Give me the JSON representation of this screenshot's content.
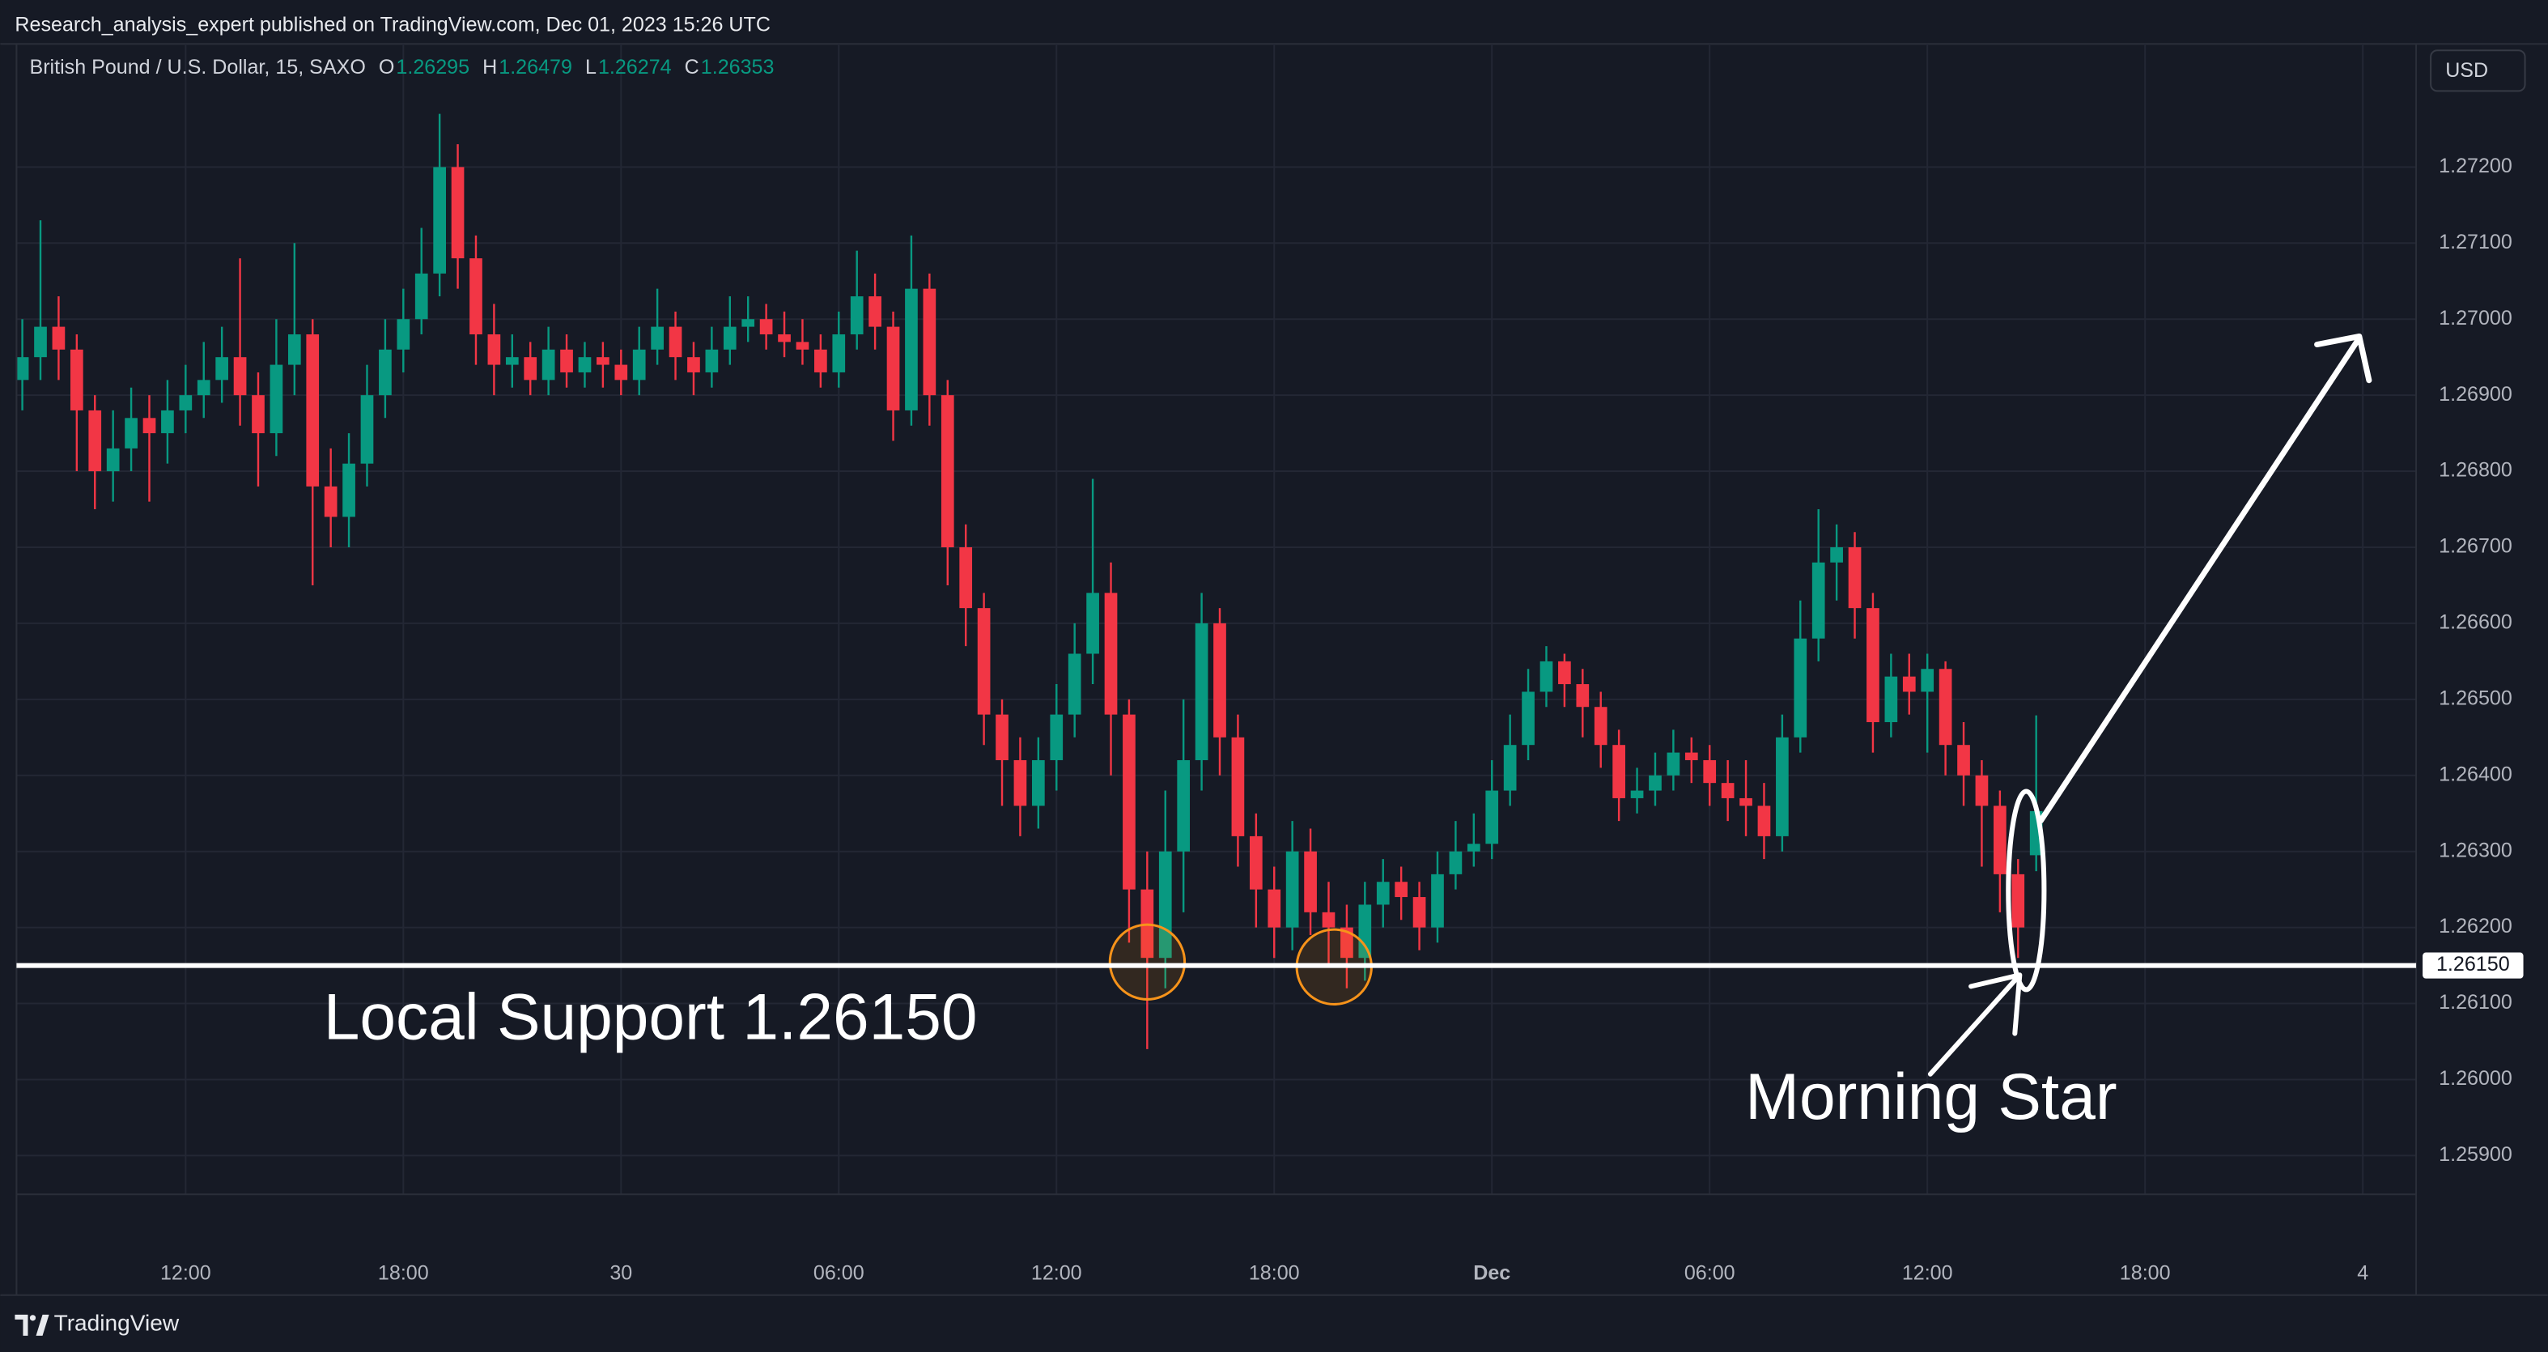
{
  "header": {
    "text": "Research_analysis_expert published on TradingView.com, Dec 01, 2023 15:26 UTC"
  },
  "footer": {
    "brand": "TradingView"
  },
  "chart_data": {
    "type": "candlestick",
    "symbol": "British Pound / U.S. Dollar, 15, SAXO",
    "ohlc_labels": [
      "O",
      "H",
      "L",
      "C"
    ],
    "currency": "USD",
    "x": [
      7.5,
      8,
      8.5,
      9,
      9.5,
      10,
      10.5,
      11,
      11.5,
      12,
      12.5,
      13,
      13.5,
      14,
      14.5,
      15,
      15.5,
      16,
      16.5,
      17,
      17.5,
      18,
      18.5,
      19,
      19.5,
      20,
      20.5,
      21,
      21.5,
      22,
      22.5,
      23,
      23.5,
      24,
      24.5,
      25,
      25.5,
      26,
      26.5,
      27,
      27.5,
      28,
      28.5,
      29,
      29.5,
      30,
      30.5,
      31,
      31.5,
      32,
      32.5,
      33,
      33.5,
      34,
      34.5,
      35,
      35.5,
      36,
      36.5,
      37,
      37.5,
      38,
      38.5,
      39,
      39.5,
      40,
      40.5,
      41,
      41.5,
      42,
      42.5,
      43,
      43.5,
      44,
      44.5,
      45,
      45.5,
      46,
      46.5,
      47,
      47.5,
      48,
      48.5,
      49,
      49.5,
      50,
      50.5,
      51,
      51.5,
      52,
      52.5,
      53,
      53.5,
      54,
      54.5,
      55,
      55.5,
      56,
      56.5,
      57,
      57.5,
      58,
      58.5,
      59,
      59.5,
      60,
      60.5,
      61,
      61.5,
      62,
      62.5,
      63
    ],
    "open": [
      1.2692,
      1.2695,
      1.2699,
      1.2696,
      1.2688,
      1.268,
      1.2683,
      1.2687,
      1.2685,
      1.2688,
      1.269,
      1.2692,
      1.2695,
      1.269,
      1.2685,
      1.2694,
      1.2698,
      1.2678,
      1.2674,
      1.2681,
      1.269,
      1.2696,
      1.27,
      1.2706,
      1.272,
      1.2708,
      1.2698,
      1.2694,
      1.2695,
      1.2692,
      1.2696,
      1.2693,
      1.2695,
      1.2694,
      1.2692,
      1.2696,
      1.2699,
      1.2695,
      1.2693,
      1.2696,
      1.2699,
      1.27,
      1.2698,
      1.2697,
      1.2696,
      1.2693,
      1.2698,
      1.2703,
      1.2699,
      1.2688,
      1.2704,
      1.269,
      1.267,
      1.2662,
      1.2648,
      1.2642,
      1.2636,
      1.2642,
      1.2648,
      1.2656,
      1.2664,
      1.2648,
      1.2625,
      1.2616,
      1.263,
      1.2642,
      1.266,
      1.2645,
      1.2632,
      1.2625,
      1.262,
      1.263,
      1.2622,
      1.262,
      1.2616,
      1.2623,
      1.2626,
      1.2624,
      1.262,
      1.2627,
      1.263,
      1.2631,
      1.2638,
      1.2644,
      1.2651,
      1.2655,
      1.2652,
      1.2649,
      1.2644,
      1.2637,
      1.2638,
      1.264,
      1.2643,
      1.2642,
      1.2639,
      1.2637,
      1.2636,
      1.2632,
      1.2645,
      1.2658,
      1.2668,
      1.267,
      1.2662,
      1.2647,
      1.2653,
      1.2651,
      1.2654,
      1.2644,
      1.264,
      1.2636,
      1.2627,
      1.26295
    ],
    "high": [
      1.27,
      1.2713,
      1.2703,
      1.2698,
      1.269,
      1.2688,
      1.2691,
      1.269,
      1.2692,
      1.2694,
      1.2697,
      1.2699,
      1.2708,
      1.2693,
      1.27,
      1.271,
      1.27,
      1.2683,
      1.2685,
      1.2694,
      1.27,
      1.2704,
      1.2712,
      1.2727,
      1.2723,
      1.2711,
      1.2702,
      1.2698,
      1.2697,
      1.2699,
      1.2698,
      1.2697,
      1.2697,
      1.2696,
      1.2699,
      1.2704,
      1.2701,
      1.2697,
      1.2699,
      1.2703,
      1.2703,
      1.2702,
      1.2701,
      1.27,
      1.2698,
      1.2701,
      1.2709,
      1.2706,
      1.2701,
      1.2711,
      1.2706,
      1.2692,
      1.2673,
      1.2664,
      1.265,
      1.2645,
      1.2645,
      1.2652,
      1.266,
      1.2679,
      1.2668,
      1.265,
      1.263,
      1.2638,
      1.265,
      1.2664,
      1.2662,
      1.2648,
      1.2635,
      1.2628,
      1.2634,
      1.2633,
      1.2626,
      1.2623,
      1.2626,
      1.2629,
      1.2628,
      1.2626,
      1.263,
      1.2634,
      1.2635,
      1.2642,
      1.2648,
      1.2654,
      1.2657,
      1.2656,
      1.2654,
      1.2651,
      1.2646,
      1.2641,
      1.2643,
      1.2646,
      1.2645,
      1.2644,
      1.2642,
      1.2642,
      1.2639,
      1.2648,
      1.2663,
      1.2675,
      1.2673,
      1.2672,
      1.2664,
      1.2656,
      1.2656,
      1.2656,
      1.2655,
      1.2647,
      1.2642,
      1.2638,
      1.2629,
      1.26479
    ],
    "low": [
      1.2688,
      1.2692,
      1.2692,
      1.268,
      1.2675,
      1.2676,
      1.268,
      1.2676,
      1.2681,
      1.2685,
      1.2687,
      1.2689,
      1.2686,
      1.2678,
      1.2682,
      1.269,
      1.2665,
      1.267,
      1.267,
      1.2678,
      1.2687,
      1.2693,
      1.2698,
      1.2703,
      1.2704,
      1.2694,
      1.269,
      1.2691,
      1.269,
      1.269,
      1.2691,
      1.2691,
      1.2691,
      1.269,
      1.269,
      1.2694,
      1.2692,
      1.269,
      1.2691,
      1.2694,
      1.2697,
      1.2696,
      1.2695,
      1.2694,
      1.2691,
      1.2691,
      1.2696,
      1.2696,
      1.2684,
      1.2686,
      1.2686,
      1.2665,
      1.2657,
      1.2644,
      1.2636,
      1.2632,
      1.2633,
      1.2638,
      1.2645,
      1.2652,
      1.264,
      1.2618,
      1.2604,
      1.2612,
      1.2622,
      1.2638,
      1.264,
      1.2628,
      1.262,
      1.2616,
      1.2617,
      1.2619,
      1.2615,
      1.2612,
      1.2613,
      1.262,
      1.2621,
      1.2617,
      1.2618,
      1.2625,
      1.2628,
      1.2629,
      1.2636,
      1.2642,
      1.2649,
      1.2649,
      1.2645,
      1.2641,
      1.2634,
      1.2635,
      1.2636,
      1.2638,
      1.2639,
      1.2636,
      1.2634,
      1.2632,
      1.2629,
      1.263,
      1.2643,
      1.2655,
      1.2663,
      1.2658,
      1.2643,
      1.2645,
      1.2648,
      1.2643,
      1.264,
      1.2636,
      1.2628,
      1.2622,
      1.2616,
      1.26274
    ],
    "close": [
      1.2695,
      1.2699,
      1.2696,
      1.2688,
      1.268,
      1.2683,
      1.2687,
      1.2685,
      1.2688,
      1.269,
      1.2692,
      1.2695,
      1.269,
      1.2685,
      1.2694,
      1.2698,
      1.2678,
      1.2674,
      1.2681,
      1.269,
      1.2696,
      1.27,
      1.2706,
      1.272,
      1.2708,
      1.2698,
      1.2694,
      1.2695,
      1.2692,
      1.2696,
      1.2693,
      1.2695,
      1.2694,
      1.2692,
      1.2696,
      1.2699,
      1.2695,
      1.2693,
      1.2696,
      1.2699,
      1.27,
      1.2698,
      1.2697,
      1.2696,
      1.2693,
      1.2698,
      1.2703,
      1.2699,
      1.2688,
      1.2704,
      1.269,
      1.267,
      1.2662,
      1.2648,
      1.2642,
      1.2636,
      1.2642,
      1.2648,
      1.2656,
      1.2664,
      1.2648,
      1.2625,
      1.2616,
      1.263,
      1.2642,
      1.266,
      1.2645,
      1.2632,
      1.2625,
      1.262,
      1.263,
      1.2622,
      1.262,
      1.2616,
      1.2623,
      1.2626,
      1.2624,
      1.262,
      1.2627,
      1.263,
      1.2631,
      1.2638,
      1.2644,
      1.2651,
      1.2655,
      1.2652,
      1.2649,
      1.2644,
      1.2637,
      1.2638,
      1.264,
      1.2643,
      1.2642,
      1.2639,
      1.2637,
      1.2636,
      1.2632,
      1.2645,
      1.2658,
      1.2668,
      1.267,
      1.2662,
      1.2647,
      1.2653,
      1.2651,
      1.2654,
      1.2644,
      1.264,
      1.2636,
      1.2627,
      1.262,
      1.26353
    ],
    "up_color": "#089981",
    "down_color": "#f23645",
    "xlim": [
      7.34,
      73.47
    ],
    "xticks": [
      {
        "value": 12,
        "label": "12:00"
      },
      {
        "value": 18,
        "label": "18:00"
      },
      {
        "value": 24,
        "label": "30"
      },
      {
        "value": 30,
        "label": "06:00"
      },
      {
        "value": 36,
        "label": "12:00"
      },
      {
        "value": 42,
        "label": "18:00"
      },
      {
        "value": 48,
        "label": "Dec"
      },
      {
        "value": 54,
        "label": "06:00"
      },
      {
        "value": 60,
        "label": "12:00"
      },
      {
        "value": 66,
        "label": "18:00"
      },
      {
        "value": 72,
        "label": "4"
      }
    ],
    "ylim": [
      1.25849,
      1.27362
    ],
    "yticks": [
      {
        "value": 1.259,
        "label": "1.25900"
      },
      {
        "value": 1.26,
        "label": "1.26000"
      },
      {
        "value": 1.261,
        "label": "1.26100"
      },
      {
        "value": 1.262,
        "label": "1.26200"
      },
      {
        "value": 1.263,
        "label": "1.26300"
      },
      {
        "value": 1.264,
        "label": "1.26400"
      },
      {
        "value": 1.265,
        "label": "1.26500"
      },
      {
        "value": 1.266,
        "label": "1.26600"
      },
      {
        "value": 1.267,
        "label": "1.26700"
      },
      {
        "value": 1.268,
        "label": "1.26800"
      },
      {
        "value": 1.269,
        "label": "1.26900"
      },
      {
        "value": 1.27,
        "label": "1.27000"
      },
      {
        "value": 1.271,
        "label": "1.27100"
      },
      {
        "value": 1.272,
        "label": "1.27200"
      }
    ],
    "grid": true,
    "support": {
      "value": 1.2615,
      "label": "1.26150"
    },
    "annotations": [
      "Local Support 1.26150",
      "Morning Star"
    ]
  }
}
